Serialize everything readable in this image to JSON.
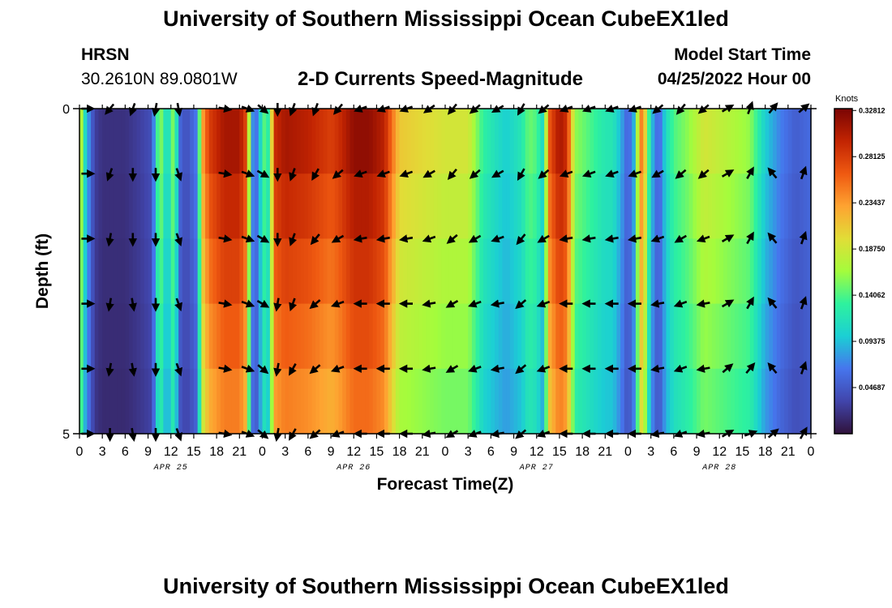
{
  "header": {
    "title": "University of Southern Mississippi Ocean CubeEX1led",
    "station": "HRSN",
    "coords": "30.2610N  89.0801W",
    "subtitle": "2-D Currents Speed-Magnitude",
    "model_start_label": "Model Start Time",
    "model_start_value": "04/25/2022 Hour 00",
    "footer_title": "University of Southern Mississippi Ocean CubeEX1led"
  },
  "chart_data": {
    "type": "heatmap",
    "title": "2-D Currents Speed-Magnitude",
    "xlabel": "Forecast Time(Z)",
    "ylabel": "Depth (ft)",
    "x_tick_labels": [
      "0",
      "3",
      "6",
      "9",
      "12",
      "15",
      "18",
      "21",
      "0",
      "3",
      "6",
      "9",
      "12",
      "15",
      "18",
      "21",
      "0",
      "3",
      "6",
      "9",
      "12",
      "15",
      "18",
      "21",
      "0",
      "3",
      "6",
      "9",
      "12",
      "15",
      "18",
      "21",
      "0"
    ],
    "date_labels": [
      {
        "label": "APR 25",
        "hour": 12
      },
      {
        "label": "APR 26",
        "hour": 36
      },
      {
        "label": "APR 27",
        "hour": 60
      },
      {
        "label": "APR 28",
        "hour": 84
      }
    ],
    "x_range_hours": [
      0,
      96
    ],
    "y_tick_labels": [
      "0",
      "5"
    ],
    "y_range": [
      0,
      5
    ],
    "colorbar": {
      "title": "Knots",
      "ticks": [
        "0.32812",
        "0.28125",
        "0.23437",
        "0.18750",
        "0.14062",
        "0.09375",
        "0.04687"
      ],
      "range": [
        0.0,
        0.33
      ],
      "colormap": "turbo"
    },
    "speed_profile_by_hour": [
      [
        0,
        0.21
      ],
      [
        0.5,
        0.13
      ],
      [
        1,
        0.09
      ],
      [
        2,
        0.03
      ],
      [
        3,
        0.02
      ],
      [
        6,
        0.02
      ],
      [
        8,
        0.03
      ],
      [
        9.5,
        0.04
      ],
      [
        10.5,
        0.17
      ],
      [
        11.5,
        0.1
      ],
      [
        12.5,
        0.17
      ],
      [
        13,
        0.06
      ],
      [
        14,
        0.04
      ],
      [
        15.5,
        0.07
      ],
      [
        16,
        0.22
      ],
      [
        17,
        0.28
      ],
      [
        19,
        0.31
      ],
      [
        21,
        0.31
      ],
      [
        22,
        0.27
      ],
      [
        22.5,
        0.08
      ],
      [
        23.5,
        0.06
      ],
      [
        24,
        0.15
      ],
      [
        25,
        0.12
      ],
      [
        25.5,
        0.29
      ],
      [
        27,
        0.31
      ],
      [
        30,
        0.3
      ],
      [
        33,
        0.28
      ],
      [
        34,
        0.29
      ],
      [
        36,
        0.32
      ],
      [
        38,
        0.32
      ],
      [
        40,
        0.3
      ],
      [
        42,
        0.21
      ],
      [
        45,
        0.2
      ],
      [
        48,
        0.19
      ],
      [
        51,
        0.19
      ],
      [
        53,
        0.13
      ],
      [
        56,
        0.1
      ],
      [
        58,
        0.12
      ],
      [
        59,
        0.15
      ],
      [
        60,
        0.14
      ],
      [
        61,
        0.1
      ],
      [
        61.5,
        0.26
      ],
      [
        63,
        0.31
      ],
      [
        64,
        0.29
      ],
      [
        65,
        0.16
      ],
      [
        67,
        0.14
      ],
      [
        69,
        0.12
      ],
      [
        70,
        0.12
      ],
      [
        71,
        0.09
      ],
      [
        72,
        0.05
      ],
      [
        73,
        0.1
      ],
      [
        73.5,
        0.25
      ],
      [
        74,
        0.24
      ],
      [
        75,
        0.1
      ],
      [
        76,
        0.05
      ],
      [
        77,
        0.11
      ],
      [
        78,
        0.14
      ],
      [
        80,
        0.16
      ],
      [
        82,
        0.19
      ],
      [
        84,
        0.18
      ],
      [
        86,
        0.17
      ],
      [
        88,
        0.16
      ],
      [
        89,
        0.13
      ],
      [
        90,
        0.1
      ],
      [
        92,
        0.07
      ],
      [
        94,
        0.05
      ],
      [
        96,
        0.06
      ]
    ],
    "vector_times": [
      1,
      4,
      7,
      10,
      13,
      19,
      22,
      24,
      26,
      28,
      31,
      34,
      37,
      40,
      43,
      46,
      49,
      52,
      55,
      58,
      61,
      64,
      67,
      70,
      73,
      76,
      79,
      82,
      85,
      88,
      91,
      95
    ],
    "vector_depths": [
      0,
      1,
      2,
      3,
      4,
      5
    ],
    "vector_directions_deg": [
      [
        90,
        220,
        200,
        190,
        170,
        100,
        110,
        130,
        180,
        200,
        200,
        220,
        250,
        250,
        250,
        235,
        220,
        230,
        240,
        210,
        230,
        250,
        250,
        250,
        250,
        230,
        220,
        230,
        60,
        20,
        40,
        50
      ],
      [
        90,
        200,
        180,
        180,
        160,
        100,
        110,
        120,
        180,
        200,
        210,
        230,
        250,
        250,
        250,
        240,
        220,
        230,
        240,
        210,
        230,
        250,
        250,
        250,
        250,
        240,
        230,
        230,
        60,
        30,
        320,
        20
      ],
      [
        90,
        190,
        180,
        180,
        160,
        100,
        110,
        120,
        180,
        200,
        220,
        240,
        260,
        260,
        260,
        250,
        230,
        240,
        250,
        220,
        240,
        260,
        260,
        260,
        260,
        250,
        240,
        250,
        60,
        30,
        320,
        20
      ],
      [
        90,
        190,
        170,
        180,
        160,
        100,
        110,
        120,
        190,
        200,
        230,
        250,
        270,
        270,
        270,
        260,
        240,
        250,
        260,
        230,
        250,
        270,
        270,
        270,
        270,
        260,
        250,
        260,
        60,
        30,
        320,
        20
      ],
      [
        90,
        190,
        170,
        180,
        160,
        100,
        110,
        130,
        190,
        210,
        230,
        250,
        270,
        270,
        270,
        260,
        240,
        250,
        260,
        230,
        250,
        270,
        270,
        270,
        270,
        260,
        250,
        260,
        50,
        40,
        320,
        20
      ],
      [
        90,
        180,
        170,
        180,
        160,
        100,
        110,
        130,
        190,
        210,
        230,
        250,
        270,
        270,
        270,
        260,
        240,
        250,
        260,
        230,
        250,
        270,
        270,
        270,
        270,
        260,
        250,
        260,
        60,
        70,
        50,
        30
      ]
    ]
  }
}
